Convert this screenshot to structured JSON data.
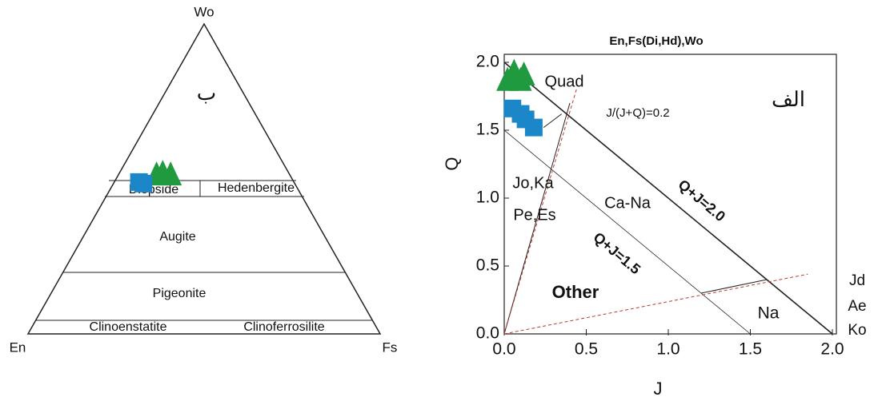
{
  "chart_data": [
    {
      "type": "ternary",
      "apex_labels": {
        "top": "Wo",
        "left": "En",
        "right": "Fs"
      },
      "annotation": "ب",
      "fields": [
        "Diopside",
        "Hedenbergite",
        "Augite",
        "Pigeonite",
        "Clinoenstatite",
        "Clinoferrosilite"
      ],
      "series": [
        {
          "marker": "triangle",
          "color": "#1f9a3f",
          "wo": [
            51,
            51.5,
            51
          ],
          "en": [
            38,
            36,
            34
          ],
          "fs": [
            11,
            12.5,
            15
          ]
        },
        {
          "marker": "square",
          "color": "#1b86c8",
          "wo": [
            49,
            48.5
          ],
          "en": [
            44,
            43
          ],
          "fs": [
            7,
            8.5
          ]
        }
      ]
    },
    {
      "type": "scatter",
      "title": "En,Fs(Di,Hd),Wo",
      "x_label": "J",
      "y_label": "Q",
      "xlim": [
        0,
        2
      ],
      "ylim": [
        0,
        2
      ],
      "xticks": [
        {
          "value": 0,
          "label": "0.0"
        },
        0.5,
        {
          "value": 1,
          "label": "1.0"
        },
        1.5,
        {
          "value": 2,
          "label": "2.0"
        }
      ],
      "yticks": [
        {
          "value": 0,
          "label": "0.0"
        },
        0.5,
        {
          "value": 1,
          "label": "1.0"
        },
        1.5,
        {
          "value": 2,
          "label": "2.0"
        }
      ],
      "annotations": [
        "Quad",
        "J/(J+Q)=0.2",
        "الف",
        "Jo,Ka",
        "Pe,Es",
        "Ca-Na",
        "Q+J=2.0",
        "Q+J=1.5",
        "Other",
        "Na",
        "Jd",
        "Ae",
        "Ko"
      ],
      "series": [
        {
          "marker": "triangle",
          "color": "#1f9a3f",
          "x": [
            0.02,
            0.06,
            0.1,
            0.12
          ],
          "values": [
            1.86,
            1.92,
            1.86,
            1.9
          ]
        },
        {
          "marker": "square",
          "color": "#1b86c8",
          "x": [
            0.05,
            0.1,
            0.13,
            0.18
          ],
          "values": [
            1.66,
            1.62,
            1.58,
            1.52
          ]
        }
      ]
    }
  ]
}
